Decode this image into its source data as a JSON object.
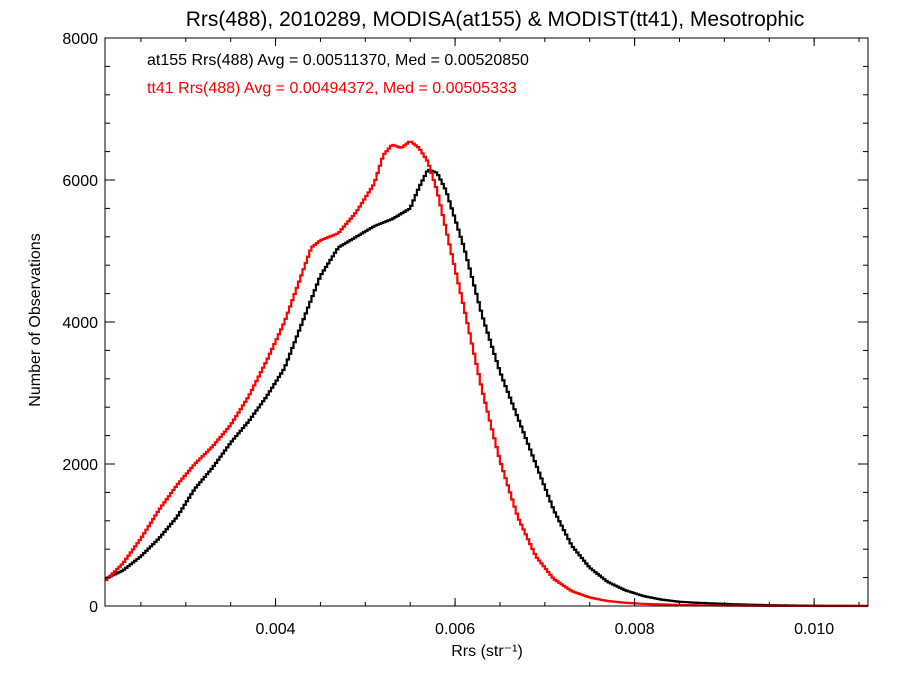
{
  "chart_data": {
    "type": "line",
    "title": "Rrs(488), 2010289, MODISA(at155) & MODIST(tt41), Mesotrophic",
    "xlabel": "Rrs (str⁻¹)",
    "ylabel": "Number of Observations",
    "xlim": [
      0.0021,
      0.0106
    ],
    "ylim": [
      0,
      8000
    ],
    "x_ticks": [
      0.004,
      0.006,
      0.008,
      0.01
    ],
    "x_tick_labels": [
      "0.004",
      "0.006",
      "0.008",
      "0.010"
    ],
    "y_ticks": [
      0,
      2000,
      4000,
      6000,
      8000
    ],
    "y_tick_labels": [
      "0",
      "2000",
      "4000",
      "6000",
      "8000"
    ],
    "legend_placement": "top-left",
    "grid": false,
    "series": [
      {
        "name": "at155",
        "label": "at155 Rrs(488) Avg = 0.00511370, Med = 0.00520850",
        "color": "#000000",
        "x": [
          0.0021,
          0.0023,
          0.0025,
          0.0027,
          0.0029,
          0.0031,
          0.0033,
          0.0035,
          0.0037,
          0.0039,
          0.0041,
          0.0043,
          0.0045,
          0.0047,
          0.0049,
          0.0051,
          0.0053,
          0.0055,
          0.0056,
          0.0057,
          0.0058,
          0.0059,
          0.0061,
          0.0063,
          0.0065,
          0.0067,
          0.0069,
          0.0071,
          0.0073,
          0.0075,
          0.0077,
          0.0079,
          0.0081,
          0.0083,
          0.0085,
          0.0087,
          0.0089,
          0.0091,
          0.0093,
          0.0095,
          0.0097,
          0.0099,
          0.0101,
          0.0103,
          0.0106
        ],
        "y": [
          380,
          500,
          700,
          950,
          1250,
          1650,
          1950,
          2300,
          2600,
          2950,
          3350,
          4000,
          4650,
          5050,
          5200,
          5350,
          5450,
          5600,
          5900,
          6150,
          6100,
          5850,
          5050,
          4100,
          3300,
          2650,
          2000,
          1350,
          850,
          540,
          340,
          220,
          140,
          90,
          60,
          45,
          35,
          25,
          18,
          12,
          8,
          5,
          3,
          2,
          1
        ]
      },
      {
        "name": "tt41",
        "label": "tt41 Rrs(488) Avg = 0.00494372, Med = 0.00505333",
        "color": "#ff0000",
        "x": [
          0.0021,
          0.0023,
          0.0025,
          0.0027,
          0.0029,
          0.0031,
          0.0033,
          0.0035,
          0.0037,
          0.0039,
          0.0041,
          0.0043,
          0.0044,
          0.0045,
          0.0047,
          0.0049,
          0.0051,
          0.0052,
          0.0053,
          0.0054,
          0.0055,
          0.0056,
          0.0057,
          0.0058,
          0.0059,
          0.0061,
          0.0063,
          0.0065,
          0.0067,
          0.0069,
          0.0071,
          0.0073,
          0.0075,
          0.0077,
          0.0079,
          0.0081,
          0.0083,
          0.0085,
          0.0087,
          0.0089,
          0.0091,
          0.0093,
          0.0095,
          0.0097,
          0.0099,
          0.0101,
          0.0103,
          0.0106
        ],
        "y": [
          350,
          600,
          950,
          1350,
          1700,
          2000,
          2250,
          2550,
          2950,
          3450,
          4000,
          4700,
          5050,
          5150,
          5250,
          5550,
          5950,
          6350,
          6500,
          6450,
          6550,
          6450,
          6250,
          5850,
          5300,
          4200,
          3050,
          2050,
          1250,
          700,
          380,
          210,
          120,
          70,
          45,
          30,
          22,
          15,
          10,
          7,
          5,
          3,
          2,
          1,
          1,
          0,
          0,
          0
        ]
      }
    ]
  }
}
